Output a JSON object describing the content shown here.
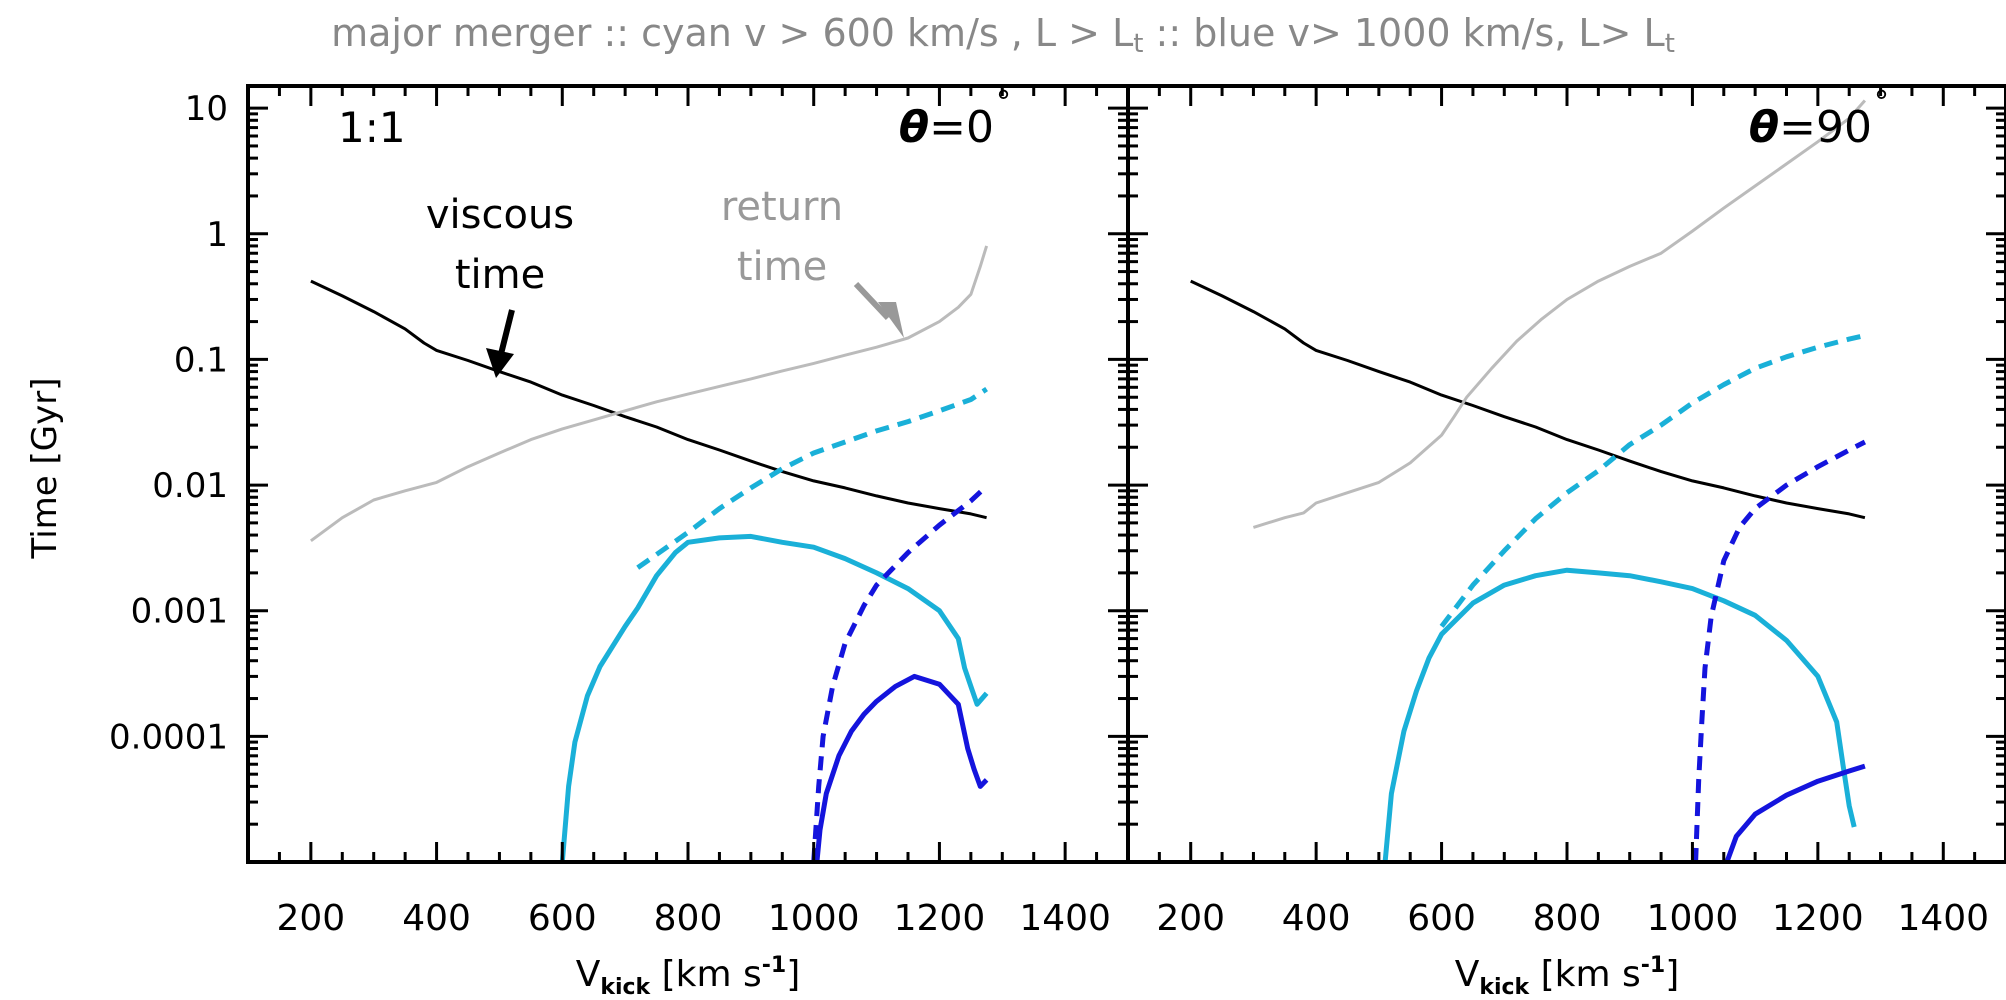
{
  "title": {
    "text": "major merger ::  cyan v > 600 km/s , L > L",
    "sub1": "t",
    "mid": "  ::  blue v> 1000 km/s, L> L",
    "sub2": "t"
  },
  "chart_data": {
    "type": "line",
    "shared": {
      "ylabel": "Time  [Gyr]",
      "yscale": "log",
      "ylim": [
        1e-05,
        15
      ],
      "yticks": [
        10,
        1,
        0.1,
        0.01,
        0.001,
        0.0001
      ],
      "ytick_labels": [
        "10",
        "1",
        "0.1",
        "0.01",
        "0.001",
        "0.0001"
      ],
      "xlim": [
        100,
        1500
      ],
      "xticks": [
        200,
        400,
        600,
        800,
        1000,
        1200,
        1400
      ],
      "xtick_labels": [
        "200",
        "400",
        "600",
        "800",
        "1000",
        "1200",
        "1400"
      ],
      "xlabel_main": "V",
      "xlabel_sub": "kick",
      "xlabel_rest": " [km s",
      "xlabel_sup": "-1",
      "xlabel_end": "]",
      "colors": {
        "viscous": "#000000",
        "return": "#bbbbbb",
        "cyan": "#1ab0d8",
        "blue": "#1414dd"
      }
    },
    "panels": [
      {
        "ratio_label": "1:1",
        "theta_symbol": "θ",
        "theta_value": "=0",
        "degree": "°",
        "annotations": {
          "viscous_line1": "viscous",
          "viscous_line2": "time",
          "return_line1": "return",
          "return_line2": "time"
        },
        "series": [
          {
            "key": "viscous",
            "dashed": false,
            "width": 3,
            "points": [
              [
                200,
                0.42
              ],
              [
                250,
                0.32
              ],
              [
                300,
                0.24
              ],
              [
                350,
                0.175
              ],
              [
                380,
                0.135
              ],
              [
                400,
                0.118
              ],
              [
                450,
                0.098
              ],
              [
                500,
                0.08
              ],
              [
                550,
                0.066
              ],
              [
                600,
                0.052
              ],
              [
                650,
                0.043
              ],
              [
                700,
                0.035
              ],
              [
                750,
                0.029
              ],
              [
                800,
                0.023
              ],
              [
                850,
                0.019
              ],
              [
                900,
                0.0155
              ],
              [
                950,
                0.0128
              ],
              [
                1000,
                0.0108
              ],
              [
                1050,
                0.0095
              ],
              [
                1100,
                0.0082
              ],
              [
                1150,
                0.0072
              ],
              [
                1200,
                0.0065
              ],
              [
                1250,
                0.0059
              ],
              [
                1275,
                0.0055
              ]
            ]
          },
          {
            "key": "return",
            "dashed": false,
            "width": 3,
            "points": [
              [
                200,
                0.0036
              ],
              [
                250,
                0.0055
              ],
              [
                300,
                0.0076
              ],
              [
                350,
                0.009
              ],
              [
                400,
                0.0105
              ],
              [
                450,
                0.014
              ],
              [
                500,
                0.018
              ],
              [
                550,
                0.023
              ],
              [
                600,
                0.028
              ],
              [
                650,
                0.033
              ],
              [
                700,
                0.039
              ],
              [
                750,
                0.046
              ],
              [
                800,
                0.053
              ],
              [
                850,
                0.061
              ],
              [
                900,
                0.07
              ],
              [
                950,
                0.081
              ],
              [
                1000,
                0.093
              ],
              [
                1050,
                0.108
              ],
              [
                1100,
                0.125
              ],
              [
                1150,
                0.148
              ],
              [
                1200,
                0.2
              ],
              [
                1230,
                0.26
              ],
              [
                1250,
                0.33
              ],
              [
                1265,
                0.55
              ],
              [
                1275,
                0.8
              ]
            ]
          },
          {
            "key": "cyan",
            "dashed": true,
            "width": 5,
            "points": [
              [
                720,
                0.0022
              ],
              [
                800,
                0.0042
              ],
              [
                850,
                0.0065
              ],
              [
                900,
                0.0095
              ],
              [
                950,
                0.0135
              ],
              [
                1000,
                0.018
              ],
              [
                1050,
                0.022
              ],
              [
                1100,
                0.027
              ],
              [
                1150,
                0.032
              ],
              [
                1200,
                0.039
              ],
              [
                1250,
                0.048
              ],
              [
                1275,
                0.058
              ]
            ]
          },
          {
            "key": "cyan",
            "dashed": false,
            "width": 5,
            "points": [
              [
                600,
                1e-05
              ],
              [
                610,
                4e-05
              ],
              [
                620,
                9e-05
              ],
              [
                640,
                0.00021
              ],
              [
                660,
                0.00036
              ],
              [
                700,
                0.00075
              ],
              [
                720,
                0.00105
              ],
              [
                750,
                0.0019
              ],
              [
                780,
                0.0029
              ],
              [
                800,
                0.0035
              ],
              [
                850,
                0.0038
              ],
              [
                900,
                0.0039
              ],
              [
                950,
                0.0035
              ],
              [
                1000,
                0.0032
              ],
              [
                1050,
                0.0026
              ],
              [
                1100,
                0.002
              ],
              [
                1150,
                0.0015
              ],
              [
                1200,
                0.001
              ],
              [
                1230,
                0.0006
              ],
              [
                1240,
                0.00035
              ],
              [
                1250,
                0.00025
              ],
              [
                1260,
                0.00018
              ],
              [
                1275,
                0.00022
              ]
            ]
          },
          {
            "key": "blue",
            "dashed": true,
            "width": 5,
            "points": [
              [
                1000,
                1e-05
              ],
              [
                1008,
                4e-05
              ],
              [
                1015,
                0.0001
              ],
              [
                1030,
                0.00025
              ],
              [
                1050,
                0.00055
              ],
              [
                1080,
                0.0011
              ],
              [
                1100,
                0.0016
              ],
              [
                1150,
                0.0029
              ],
              [
                1200,
                0.0048
              ],
              [
                1250,
                0.0075
              ],
              [
                1275,
                0.0098
              ]
            ]
          },
          {
            "key": "blue",
            "dashed": false,
            "width": 5,
            "points": [
              [
                1005,
                1e-05
              ],
              [
                1010,
                1.8e-05
              ],
              [
                1020,
                3.5e-05
              ],
              [
                1040,
                7e-05
              ],
              [
                1060,
                0.00011
              ],
              [
                1080,
                0.00015
              ],
              [
                1100,
                0.00019
              ],
              [
                1130,
                0.00025
              ],
              [
                1160,
                0.0003
              ],
              [
                1200,
                0.00026
              ],
              [
                1230,
                0.00018
              ],
              [
                1245,
                8e-05
              ],
              [
                1255,
                5.5e-05
              ],
              [
                1265,
                4e-05
              ],
              [
                1275,
                4.5e-05
              ]
            ]
          }
        ]
      },
      {
        "ratio_label": "",
        "theta_symbol": "θ",
        "theta_value": "=90",
        "degree": "°",
        "annotations": null,
        "series": [
          {
            "key": "viscous",
            "dashed": false,
            "width": 3,
            "points": [
              [
                200,
                0.42
              ],
              [
                250,
                0.32
              ],
              [
                300,
                0.24
              ],
              [
                350,
                0.175
              ],
              [
                380,
                0.135
              ],
              [
                400,
                0.118
              ],
              [
                450,
                0.098
              ],
              [
                500,
                0.08
              ],
              [
                550,
                0.066
              ],
              [
                600,
                0.052
              ],
              [
                650,
                0.043
              ],
              [
                700,
                0.035
              ],
              [
                750,
                0.029
              ],
              [
                800,
                0.023
              ],
              [
                850,
                0.019
              ],
              [
                900,
                0.0155
              ],
              [
                950,
                0.0128
              ],
              [
                1000,
                0.0108
              ],
              [
                1050,
                0.0095
              ],
              [
                1100,
                0.0082
              ],
              [
                1150,
                0.0072
              ],
              [
                1200,
                0.0065
              ],
              [
                1250,
                0.0059
              ],
              [
                1275,
                0.0055
              ]
            ]
          },
          {
            "key": "return",
            "dashed": false,
            "width": 3,
            "points": [
              [
                300,
                0.0046
              ],
              [
                350,
                0.0055
              ],
              [
                380,
                0.006
              ],
              [
                400,
                0.0072
              ],
              [
                450,
                0.0087
              ],
              [
                500,
                0.0105
              ],
              [
                550,
                0.015
              ],
              [
                600,
                0.025
              ],
              [
                620,
                0.035
              ],
              [
                640,
                0.05
              ],
              [
                680,
                0.085
              ],
              [
                720,
                0.14
              ],
              [
                760,
                0.21
              ],
              [
                800,
                0.3
              ],
              [
                850,
                0.42
              ],
              [
                900,
                0.55
              ],
              [
                950,
                0.7
              ],
              [
                1000,
                1.05
              ],
              [
                1050,
                1.6
              ],
              [
                1100,
                2.4
              ],
              [
                1150,
                3.6
              ],
              [
                1200,
                5.4
              ],
              [
                1250,
                8.3
              ],
              [
                1275,
                11.5
              ]
            ]
          },
          {
            "key": "cyan",
            "dashed": true,
            "width": 5,
            "points": [
              [
                600,
                0.00075
              ],
              [
                650,
                0.0016
              ],
              [
                700,
                0.003
              ],
              [
                750,
                0.0054
              ],
              [
                800,
                0.0087
              ],
              [
                850,
                0.013
              ],
              [
                900,
                0.021
              ],
              [
                950,
                0.03
              ],
              [
                1000,
                0.045
              ],
              [
                1050,
                0.063
              ],
              [
                1100,
                0.085
              ],
              [
                1150,
                0.105
              ],
              [
                1200,
                0.125
              ],
              [
                1250,
                0.145
              ],
              [
                1275,
                0.155
              ]
            ]
          },
          {
            "key": "cyan",
            "dashed": false,
            "width": 5,
            "points": [
              [
                510,
                1e-05
              ],
              [
                520,
                3.5e-05
              ],
              [
                540,
                0.00011
              ],
              [
                560,
                0.00023
              ],
              [
                580,
                0.00042
              ],
              [
                600,
                0.00065
              ],
              [
                650,
                0.00115
              ],
              [
                700,
                0.0016
              ],
              [
                750,
                0.0019
              ],
              [
                800,
                0.0021
              ],
              [
                850,
                0.002
              ],
              [
                900,
                0.0019
              ],
              [
                950,
                0.0017
              ],
              [
                1000,
                0.0015
              ],
              [
                1050,
                0.0012
              ],
              [
                1100,
                0.00092
              ],
              [
                1150,
                0.00058
              ],
              [
                1200,
                0.0003
              ],
              [
                1230,
                0.00013
              ],
              [
                1240,
                6e-05
              ],
              [
                1250,
                2.8e-05
              ],
              [
                1258,
                1.9e-05
              ]
            ]
          },
          {
            "key": "blue",
            "dashed": true,
            "width": 5,
            "points": [
              [
                1005,
                1e-05
              ],
              [
                1010,
                4.5e-05
              ],
              [
                1015,
                0.00013
              ],
              [
                1020,
                0.00035
              ],
              [
                1030,
                0.0009
              ],
              [
                1050,
                0.0025
              ],
              [
                1075,
                0.0046
              ],
              [
                1100,
                0.0065
              ],
              [
                1150,
                0.01
              ],
              [
                1200,
                0.014
              ],
              [
                1250,
                0.019
              ],
              [
                1275,
                0.022
              ]
            ]
          },
          {
            "key": "blue",
            "dashed": false,
            "width": 5,
            "points": [
              [
                1055,
                1e-05
              ],
              [
                1070,
                1.6e-05
              ],
              [
                1100,
                2.4e-05
              ],
              [
                1150,
                3.4e-05
              ],
              [
                1200,
                4.4e-05
              ],
              [
                1250,
                5.3e-05
              ],
              [
                1275,
                5.8e-05
              ]
            ]
          }
        ]
      }
    ]
  }
}
